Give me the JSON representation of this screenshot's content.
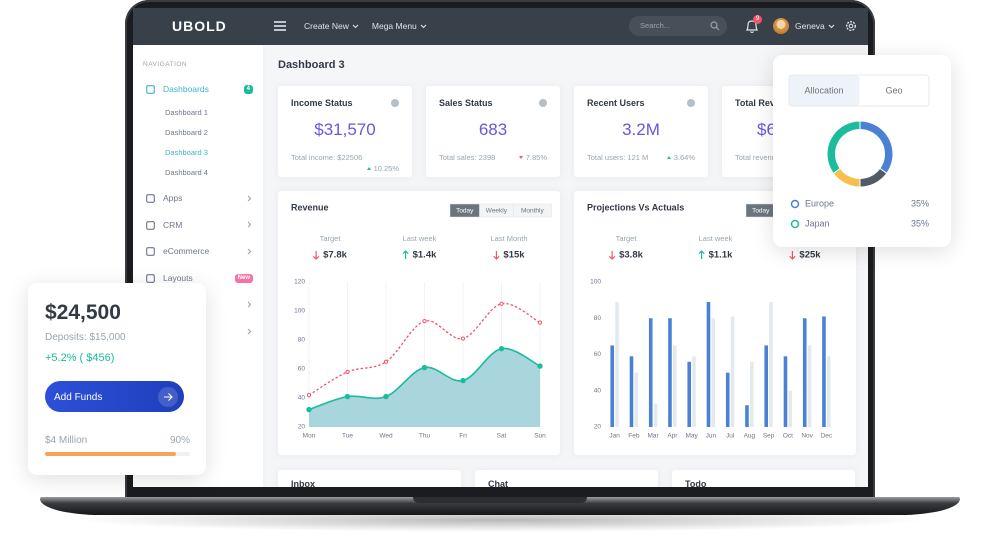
{
  "brand": "UBOLD",
  "topbar": {
    "menu": [
      "Create New",
      "Mega Menu"
    ],
    "search_placeholder": "Search...",
    "notification_count": "9",
    "user": "Geneva"
  },
  "sidebar": {
    "heading": "NAVIGATION",
    "items": [
      {
        "label": "Dashboards",
        "badge": "4",
        "children": [
          "Dashboard 1",
          "Dashboard 2",
          "Dashboard 3",
          "Dashboard 4"
        ]
      },
      {
        "label": "Apps"
      },
      {
        "label": "CRM"
      },
      {
        "label": "eCommerce"
      },
      {
        "label": "Layouts",
        "badge": "New"
      }
    ]
  },
  "page_title": "Dashboard 3",
  "stat_cards": [
    {
      "title": "Income Status",
      "value": "$31,570",
      "footer": "Total income: $22506",
      "change": "10.25%",
      "trend": "up"
    },
    {
      "title": "Sales Status",
      "value": "683",
      "footer": "Total sales: 2398",
      "change": "7.85%",
      "trend": "down"
    },
    {
      "title": "Recent Users",
      "value": "3.2M",
      "footer": "Total users: 121 M",
      "change": "3.64%",
      "trend": "up"
    },
    {
      "title": "Total Reve",
      "value": "$6",
      "footer": "Total revenu"
    }
  ],
  "chart_data": [
    {
      "type": "line",
      "title": "Revenue",
      "tabs": [
        "Today",
        "Weekly",
        "Monthly"
      ],
      "stats": [
        {
          "label": "Target",
          "value": "$7.8k",
          "trend": "down"
        },
        {
          "label": "Last week",
          "value": "$1.4k",
          "trend": "up"
        },
        {
          "label": "Last Month",
          "value": "$15k",
          "trend": "down"
        }
      ],
      "categories": [
        "Mon",
        "Tue",
        "Wed",
        "Thu",
        "Fri",
        "Sat",
        "Sun"
      ],
      "series": [
        {
          "color": "#1abc9c",
          "fill": "#a9d5dd",
          "values": [
            32,
            41,
            41,
            61,
            52,
            74,
            62
          ]
        },
        {
          "color": "#f1556c",
          "dashed": true,
          "values": [
            42,
            58,
            65,
            93,
            81,
            105,
            92
          ]
        }
      ],
      "ylim": [
        20,
        120
      ],
      "yticks": [
        20,
        40,
        60,
        80,
        100,
        120
      ],
      "grid": "x"
    },
    {
      "type": "bar",
      "title": "Projections Vs Actuals",
      "tabs": [
        "Today"
      ],
      "stats": [
        {
          "label": "Target",
          "value": "$3.8k",
          "trend": "down"
        },
        {
          "label": "Last week",
          "value": "$1.1k",
          "trend": "up"
        },
        {
          "value": "$25k",
          "trend": "down"
        }
      ],
      "categories": [
        "Jan",
        "Feb",
        "Mar",
        "Apr",
        "May",
        "Jun",
        "Jul",
        "Aug",
        "Sep",
        "Oct",
        "Nov",
        "Dec"
      ],
      "series": [
        {
          "color": "#4a81d4",
          "values": [
            65,
            59,
            80,
            80,
            56,
            89,
            50,
            32,
            65,
            59,
            80,
            81
          ]
        },
        {
          "color": "#e3eaef",
          "values": [
            89,
            50,
            33,
            65,
            59,
            80,
            81,
            56,
            89,
            40,
            65,
            59
          ]
        }
      ],
      "ylim": [
        20,
        100
      ],
      "yticks": [
        20,
        40,
        60,
        80,
        100
      ]
    },
    {
      "type": "pie",
      "donut": true,
      "tabs": [
        "Allocation",
        "Geo"
      ],
      "categories": [
        "Europe",
        null,
        null,
        "Japan"
      ],
      "values": [
        35,
        15,
        15,
        35
      ],
      "value_labels": [
        "35%",
        null,
        null,
        "35%"
      ],
      "colors": [
        "#4a81d4",
        "#4f5b67",
        "#f7c04b",
        "#1abc9c"
      ]
    }
  ],
  "bottom_cards": [
    "Inbox",
    "Chat",
    "Todo"
  ],
  "wallet": {
    "balance": "$24,500",
    "deposits": "Deposits: $15,000",
    "change": "+5.2% ( $456)",
    "button": "Add Funds",
    "goal": {
      "label": "$4 Million",
      "value": 90,
      "value_label": "90%"
    }
  }
}
